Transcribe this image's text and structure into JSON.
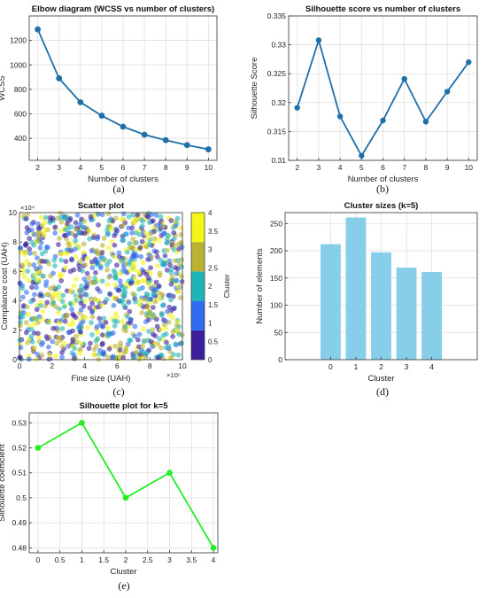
{
  "chart_data": [
    {
      "type": "line",
      "title": "Elbow diagram (WCSS vs number of clusters)",
      "xlabel": "Number of clusters",
      "ylabel": "WCSS",
      "x": [
        2,
        3,
        4,
        5,
        6,
        7,
        8,
        9,
        10
      ],
      "y": [
        1290,
        890,
        695,
        585,
        495,
        430,
        385,
        345,
        310
      ],
      "xlim": [
        1.6,
        10.4
      ],
      "ylim": [
        220,
        1400
      ],
      "xticks": [
        "2",
        "3",
        "4",
        "5",
        "6",
        "7",
        "8",
        "9",
        "10"
      ],
      "yticks": [
        "400",
        "600",
        "800",
        "1000",
        "1200"
      ],
      "grid": true,
      "color": "#1f6fa8",
      "caption": "(a)"
    },
    {
      "type": "line",
      "title": "Silhouette score vs number of clusters",
      "xlabel": "Number of clusters",
      "ylabel": "Silhouette Score",
      "x": [
        2,
        3,
        4,
        5,
        6,
        7,
        8,
        9,
        10
      ],
      "y": [
        0.3191,
        0.3308,
        0.3176,
        0.3108,
        0.3169,
        0.3241,
        0.3167,
        0.3219,
        0.327
      ],
      "xlim": [
        1.6,
        10.4
      ],
      "ylim": [
        0.31,
        0.335
      ],
      "xticks": [
        "2",
        "3",
        "4",
        "5",
        "6",
        "7",
        "8",
        "9",
        "10"
      ],
      "yticks": [
        "0.31",
        "0.315",
        "0.32",
        "0.325",
        "0.33",
        "0.335"
      ],
      "grid": true,
      "color": "#1f6fa8",
      "caption": "(b)"
    },
    {
      "type": "scatter",
      "title": "Scatter plot",
      "xlabel": "Fine size (UAH)",
      "ylabel": "Compliance cost (UAH)",
      "x_exponent": "×10⁵",
      "y_exponent": "×10⁴",
      "xlim": [
        0,
        10
      ],
      "ylim": [
        0,
        10
      ],
      "xticks": [
        "0",
        "2",
        "4",
        "6",
        "8",
        "10"
      ],
      "yticks": [
        "0",
        "2",
        "4",
        "6",
        "8",
        "10"
      ],
      "point_count": 1000,
      "clusters": [
        0,
        1,
        2,
        3,
        4
      ],
      "colorbar": {
        "label": "Cluster",
        "ticks": [
          "0",
          "0.5",
          "1",
          "1.5",
          "2",
          "2.5",
          "3",
          "3.5",
          "4"
        ],
        "colors": [
          "#3d1f9c",
          "#2f6cf0",
          "#1fb5b5",
          "#b9b233",
          "#f5f51a"
        ]
      },
      "caption": "(c)"
    },
    {
      "type": "bar",
      "title": "Cluster sizes (k=5)",
      "xlabel": "Cluster",
      "ylabel": "Number of elements",
      "categories": [
        "0",
        "1",
        "2",
        "3",
        "4"
      ],
      "values": [
        212,
        261,
        197,
        169,
        161
      ],
      "xlim": [
        -1.8,
        5.8
      ],
      "ylim": [
        0,
        270
      ],
      "yticks": [
        "0",
        "50",
        "100",
        "150",
        "200",
        "250"
      ],
      "grid": true,
      "color": "#87ceeb",
      "caption": "(d)"
    },
    {
      "type": "line",
      "title": "Silhouette plot for k=5",
      "xlabel": "Cluster",
      "ylabel": "Silhouette coefficient",
      "x": [
        0,
        1,
        2,
        3,
        4
      ],
      "y": [
        0.52,
        0.53,
        0.5,
        0.51,
        0.48
      ],
      "xlim": [
        -0.2,
        4.1
      ],
      "ylim": [
        0.478,
        0.534
      ],
      "xticks": [
        "0",
        "0.5",
        "1",
        "1.5",
        "2",
        "2.5",
        "3",
        "3.5",
        "4"
      ],
      "yticks": [
        "0.48",
        "0.49",
        "0.5",
        "0.51",
        "0.52",
        "0.53"
      ],
      "grid": true,
      "color": "#22ee22",
      "caption": "(e)"
    }
  ]
}
